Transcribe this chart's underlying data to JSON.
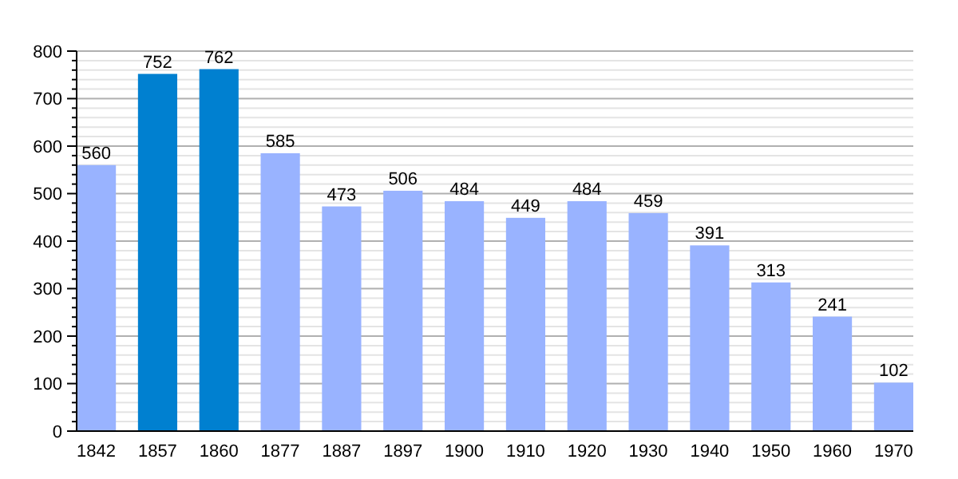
{
  "chart_data": {
    "type": "bar",
    "categories": [
      "1842",
      "1857",
      "1860",
      "1877",
      "1887",
      "1897",
      "1900",
      "1910",
      "1920",
      "1930",
      "1940",
      "1950",
      "1960",
      "1970"
    ],
    "values": [
      560,
      752,
      762,
      585,
      473,
      506,
      484,
      449,
      484,
      459,
      391,
      313,
      241,
      102
    ],
    "colors": [
      "#99b3ff",
      "#0080d0",
      "#0080d0",
      "#99b3ff",
      "#99b3ff",
      "#99b3ff",
      "#99b3ff",
      "#99b3ff",
      "#99b3ff",
      "#99b3ff",
      "#99b3ff",
      "#99b3ff",
      "#99b3ff",
      "#99b3ff"
    ],
    "ylim": [
      0,
      800
    ],
    "yticks": [
      0,
      {
        "value": 20,
        "label": null
      },
      {
        "value": 40,
        "label": null
      },
      {
        "value": 60,
        "label": null
      },
      {
        "value": 80,
        "label": null
      },
      100,
      {
        "value": 120,
        "label": null
      },
      {
        "value": 140,
        "label": null
      },
      {
        "value": 160,
        "label": null
      },
      {
        "value": 180,
        "label": null
      },
      200,
      {
        "value": 220,
        "label": null
      },
      {
        "value": 240,
        "label": null
      },
      {
        "value": 260,
        "label": null
      },
      {
        "value": 280,
        "label": null
      },
      300,
      {
        "value": 320,
        "label": null
      },
      {
        "value": 340,
        "label": null
      },
      {
        "value": 360,
        "label": null
      },
      {
        "value": 380,
        "label": null
      },
      400,
      {
        "value": 420,
        "label": null
      },
      {
        "value": 440,
        "label": null
      },
      {
        "value": 460,
        "label": null
      },
      {
        "value": 480,
        "label": null
      },
      500,
      {
        "value": 520,
        "label": null
      },
      {
        "value": 540,
        "label": null
      },
      {
        "value": 560,
        "label": null
      },
      {
        "value": 580,
        "label": null
      },
      600,
      {
        "value": 620,
        "label": null
      },
      {
        "value": 640,
        "label": null
      },
      {
        "value": 660,
        "label": null
      },
      {
        "value": 680,
        "label": null
      },
      700,
      {
        "value": 720,
        "label": null
      },
      {
        "value": 740,
        "label": null
      },
      {
        "value": 760,
        "label": null
      },
      {
        "value": 780,
        "label": null
      },
      800
    ],
    "grid": "y",
    "data_labels": true
  }
}
